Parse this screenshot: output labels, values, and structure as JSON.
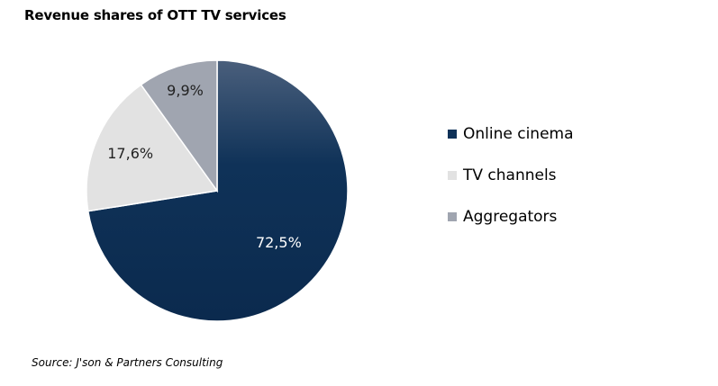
{
  "chart_data": {
    "type": "pie",
    "title": "Revenue shares of OTT TV services",
    "categories": [
      "Online cinema",
      "TV channels",
      "Aggregators"
    ],
    "values": [
      72.5,
      17.6,
      9.9
    ],
    "labels": [
      "72,5%",
      "17,6%",
      "9,9%"
    ],
    "colors": [
      "#0e3158",
      "#e2e2e2",
      "#a0a5b0"
    ],
    "legend_position": "right",
    "source": "Source: J'son & Partners Consulting"
  }
}
